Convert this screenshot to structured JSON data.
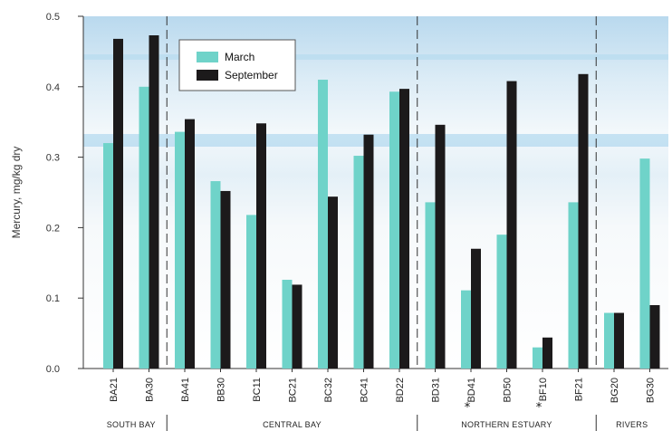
{
  "chart_data": {
    "type": "bar",
    "title": "",
    "xlabel": "",
    "ylabel": "Mercury, mg/kg dry",
    "ylim": [
      0,
      0.5
    ],
    "yticks": [
      "0.0",
      "0.1",
      "0.2",
      "0.3",
      "0.4",
      "0.5"
    ],
    "grid": false,
    "legend_position": "top-left inside",
    "categories": [
      "BA21",
      "BA30",
      "BA41",
      "BB30",
      "BC11",
      "BC21",
      "BC32",
      "BC41",
      "BD22",
      "BD31",
      "BD41",
      "BD50",
      "BF10",
      "BF21",
      "BG20",
      "BG30"
    ],
    "starred_categories": [
      "BD41",
      "BF10"
    ],
    "star_marker": "*",
    "series": [
      {
        "name": "March",
        "color": "#6fd3c9",
        "values": [
          0.32,
          0.4,
          0.336,
          0.266,
          0.218,
          0.126,
          0.41,
          0.302,
          0.393,
          0.236,
          0.111,
          0.19,
          0.03,
          0.236,
          0.079,
          0.298
        ]
      },
      {
        "name": "September",
        "color": "#1c1a1b",
        "values": [
          0.468,
          0.473,
          0.354,
          0.252,
          0.348,
          0.119,
          0.244,
          0.332,
          0.397,
          0.346,
          0.17,
          0.408,
          0.044,
          0.418,
          0.079,
          0.09
        ]
      }
    ],
    "groups": [
      {
        "name": "South Bay",
        "start": 0,
        "end": 1
      },
      {
        "name": "Central Bay",
        "start": 2,
        "end": 8
      },
      {
        "name": "Northern Estuary",
        "start": 9,
        "end": 13
      },
      {
        "name": "Rivers",
        "start": 14,
        "end": 15
      }
    ]
  }
}
